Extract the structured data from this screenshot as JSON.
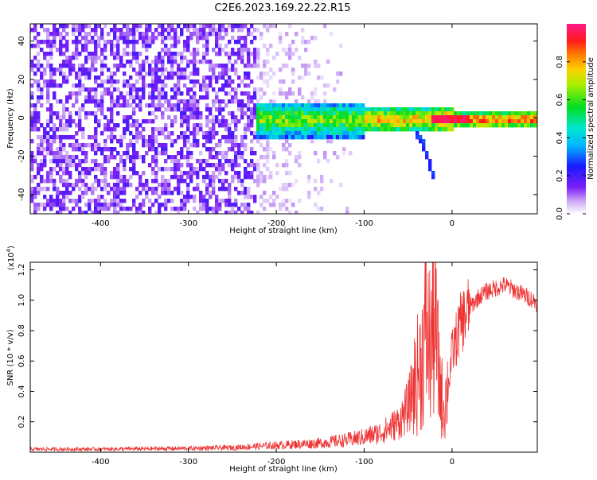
{
  "title": "C2E6.2023.169.22.22.R15",
  "chart_data": [
    {
      "type": "heatmap",
      "name": "spectrogram",
      "xlabel": "Height of straight line (km)",
      "ylabel": "Frequency (Hz)",
      "xlim": [
        -480,
        97
      ],
      "ylim": [
        -50,
        49
      ],
      "xticks": [
        -400,
        -300,
        -200,
        -100,
        0
      ],
      "yticks": [
        -40,
        -20,
        0,
        20,
        40
      ],
      "colorbar": {
        "label": "Normalized spectral amplitude",
        "range": [
          0.0,
          1.0
        ],
        "ticks": [
          0.0,
          0.2,
          0.4,
          0.6,
          0.8
        ],
        "tick_labels": [
          "0.0",
          "0.2",
          "0.4",
          "0.6",
          "0.8"
        ],
        "colormap": "rainbow (violet → blue → cyan → green → yellow → orange → red → magenta)"
      },
      "features": [
        {
          "description": "broadband noise fill",
          "x_range": [
            -480,
            -225
          ],
          "y_range": [
            -50,
            49
          ],
          "amplitude": [
            0.05,
            0.2
          ]
        },
        {
          "description": "fading noise",
          "x_range": [
            -225,
            -110
          ],
          "y_range": [
            -50,
            49
          ],
          "amplitude": [
            0.02,
            0.08
          ]
        },
        {
          "description": "signal band near 0 Hz",
          "x_range": [
            -225,
            97
          ],
          "center_hz": 0,
          "amplitude": [
            0.3,
            0.95
          ]
        },
        {
          "description": "descending trace",
          "points": [
            [
              -45,
              -5
            ],
            [
              -35,
              -12
            ],
            [
              -28,
              -22
            ],
            [
              -20,
              -33
            ]
          ]
        }
      ]
    },
    {
      "type": "line",
      "name": "snr",
      "xlabel": "Height of straight line (km)",
      "ylabel": "SNR (10 * v/v)",
      "multiplier_label": "(x10",
      "multiplier_exp": "4",
      "xlim": [
        -480,
        97
      ],
      "ylim": [
        0,
        12500
      ],
      "xticks": [
        -400,
        -300,
        -200,
        -100,
        0
      ],
      "yticks": [
        2000,
        4000,
        6000,
        8000,
        10000,
        12000
      ],
      "ytick_labels": [
        "0.2",
        "0.4",
        "0.6",
        "0.8",
        "1.0",
        "1.2"
      ],
      "color": "#ee3333",
      "series": [
        {
          "x": [
            -480,
            -400,
            -300,
            -250,
            -200,
            -150,
            -120,
            -100,
            -80,
            -60,
            -50,
            -40,
            -35,
            -30,
            -25,
            -20,
            -15,
            -10,
            -5,
            0,
            10,
            20,
            30,
            40,
            50,
            60,
            70,
            80,
            90,
            97
          ],
          "y": [
            200,
            200,
            250,
            300,
            450,
            600,
            800,
            1000,
            1300,
            2000,
            3000,
            5000,
            6000,
            8000,
            7000,
            9000,
            5000,
            3000,
            4000,
            6500,
            8500,
            9500,
            10200,
            10600,
            10800,
            11000,
            10700,
            10400,
            10100,
            9800
          ]
        }
      ]
    }
  ]
}
